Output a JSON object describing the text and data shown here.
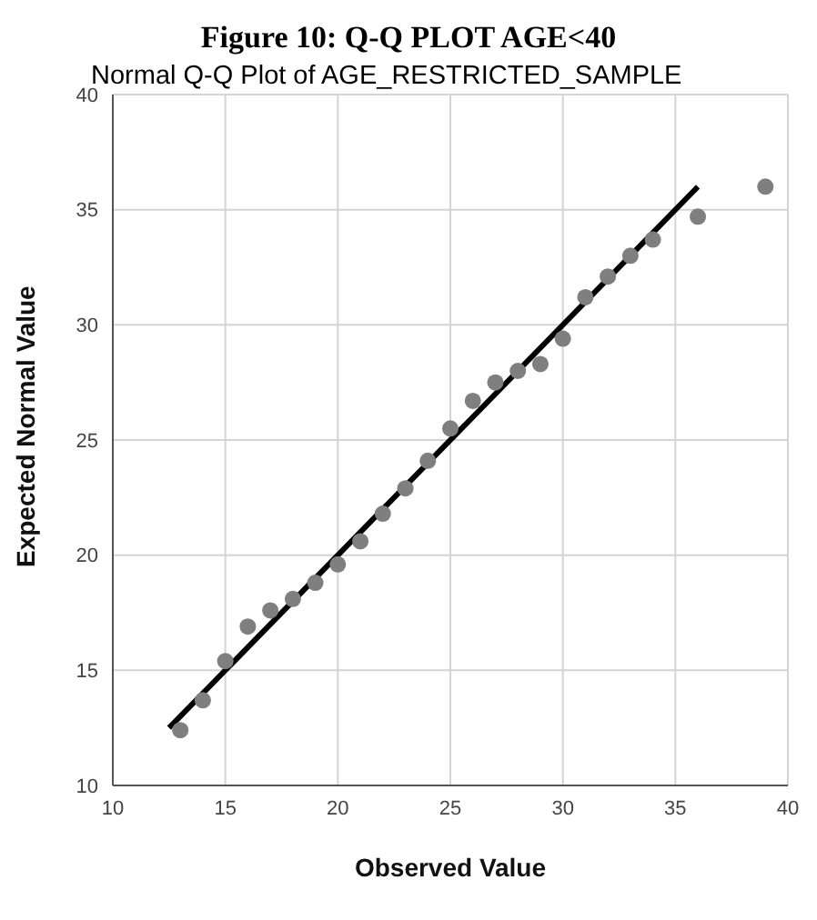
{
  "chart_data": {
    "type": "scatter",
    "title": "Figure 10: Q-Q PLOT AGE<40",
    "subtitle": "Normal Q-Q Plot of AGE_RESTRICTED_SAMPLE",
    "xlabel": "Observed Value",
    "ylabel": "Expected Normal Value",
    "x": [
      13,
      14,
      15,
      16,
      17,
      18,
      19,
      20,
      21,
      22,
      23,
      24,
      25,
      26,
      27,
      28,
      29,
      30,
      31,
      32,
      33,
      34,
      36,
      39
    ],
    "series": [
      {
        "color": "#7f7f7f",
        "marker": "circle",
        "values": [
          12.4,
          13.7,
          15.4,
          16.9,
          17.6,
          18.1,
          18.8,
          19.6,
          20.6,
          21.8,
          22.9,
          24.1,
          25.5,
          26.7,
          27.5,
          28.0,
          28.3,
          29.4,
          31.2,
          32.1,
          33.0,
          33.7,
          34.7,
          36.0
        ]
      },
      {
        "type": "line",
        "color": "#000000",
        "marker": "none",
        "line_style": "solid",
        "x": [
          12.5,
          36
        ],
        "values": [
          12.5,
          36
        ]
      }
    ],
    "xlim": [
      10,
      40
    ],
    "xticks": [
      10,
      15,
      20,
      25,
      30,
      35,
      40
    ],
    "ylim": [
      10,
      40
    ],
    "yticks": [
      10,
      15,
      20,
      25,
      30,
      35,
      40
    ],
    "grid": true,
    "legend": false
  }
}
